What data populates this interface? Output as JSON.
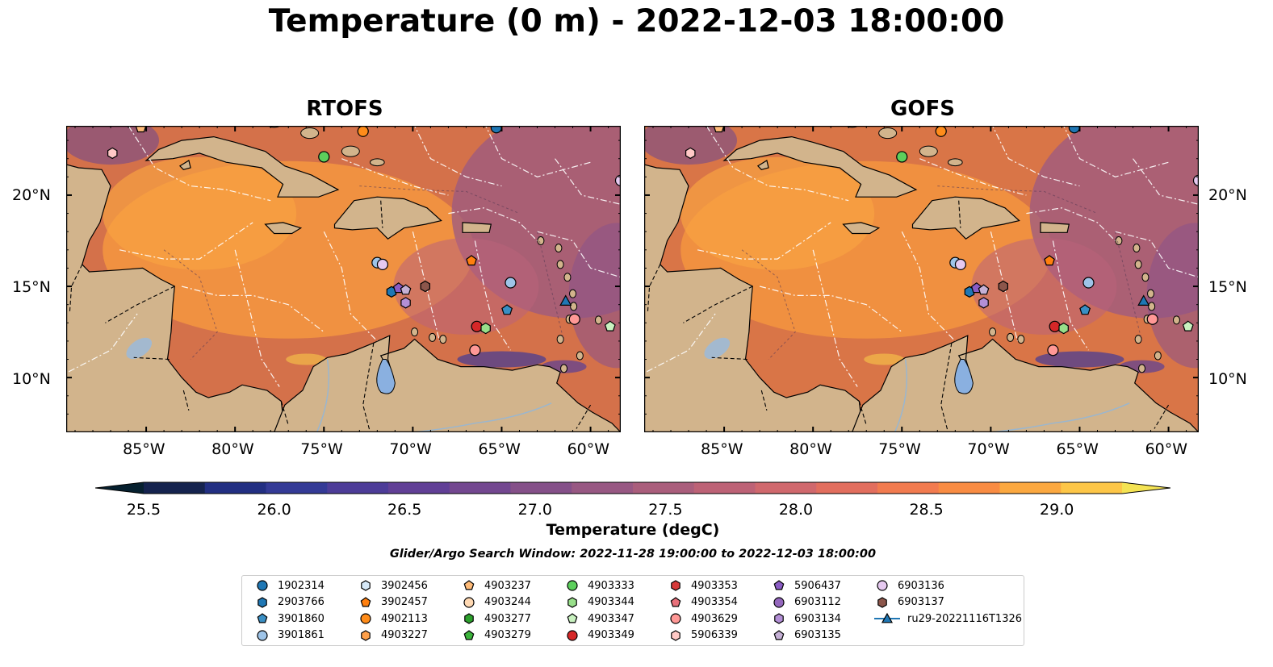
{
  "title": "Temperature (0 m) - 2022-12-03 18:00:00",
  "panels": [
    {
      "name": "RTOFS"
    },
    {
      "name": "GOFS"
    }
  ],
  "axes": {
    "lon_ticks": [
      "85°W",
      "80°W",
      "75°W",
      "70°W",
      "65°W",
      "60°W"
    ],
    "lat_ticks": [
      "20°N",
      "15°N",
      "10°N"
    ],
    "lon_range": [
      -89.5,
      -58.3
    ],
    "lat_range": [
      7.0,
      23.8
    ]
  },
  "colorbar": {
    "label": "Temperature (degC)",
    "ticks": [
      "25.5",
      "26.0",
      "26.5",
      "27.0",
      "27.5",
      "28.0",
      "28.5",
      "29.0"
    ],
    "range": [
      25.5,
      29.25
    ],
    "extend": "both",
    "colors": [
      "#06202f",
      "#15234e",
      "#222f82",
      "#343a96",
      "#4d3c98",
      "#613f96",
      "#734790",
      "#855089",
      "#985883",
      "#aa5e7c",
      "#bd6276",
      "#d0686d",
      "#e26e5e",
      "#f27b4f",
      "#f98c43",
      "#fba840",
      "#fdc647",
      "#f4e353"
    ]
  },
  "search_window": "Glider/Argo Search Window: 2022-11-28 19:00:00 to 2022-12-03 18:00:00",
  "legend": [
    {
      "label": "1902314",
      "marker": "circle",
      "color": "#1f77b4"
    },
    {
      "label": "2903766",
      "marker": "hexagon",
      "color": "#1f77b4"
    },
    {
      "label": "3901860",
      "marker": "pentagon",
      "color": "#3a8fc4"
    },
    {
      "label": "3901861",
      "marker": "circle",
      "color": "#9ec4e8"
    },
    {
      "label": "3902456",
      "marker": "hexagon",
      "color": "#d6e8f7"
    },
    {
      "label": "3902457",
      "marker": "pentagon",
      "color": "#ff7f0e"
    },
    {
      "label": "4902113",
      "marker": "circle",
      "color": "#ff8c1a"
    },
    {
      "label": "4903227",
      "marker": "hexagon",
      "color": "#ffa04a"
    },
    {
      "label": "4903237",
      "marker": "pentagon",
      "color": "#ffbb78"
    },
    {
      "label": "4903244",
      "marker": "circle",
      "color": "#ffd9b3"
    },
    {
      "label": "4903277",
      "marker": "hexagon",
      "color": "#2ca02c"
    },
    {
      "label": "4903279",
      "marker": "pentagon",
      "color": "#3cb43c"
    },
    {
      "label": "4903333",
      "marker": "circle",
      "color": "#5ccf5c"
    },
    {
      "label": "4903344",
      "marker": "hexagon",
      "color": "#98df8a"
    },
    {
      "label": "4903347",
      "marker": "pentagon",
      "color": "#c9f2c0"
    },
    {
      "label": "4903349",
      "marker": "circle",
      "color": "#d62728"
    },
    {
      "label": "4903353",
      "marker": "hexagon",
      "color": "#d63a3a"
    },
    {
      "label": "4903354",
      "marker": "pentagon",
      "color": "#e8707a"
    },
    {
      "label": "4903629",
      "marker": "circle",
      "color": "#ff9896"
    },
    {
      "label": "5906339",
      "marker": "hexagon",
      "color": "#ffc9c6"
    },
    {
      "label": "5906437",
      "marker": "pentagon",
      "color": "#8a5cc4"
    },
    {
      "label": "6903112",
      "marker": "circle",
      "color": "#9467bd"
    },
    {
      "label": "6903134",
      "marker": "hexagon",
      "color": "#b38fd6"
    },
    {
      "label": "6903135",
      "marker": "pentagon",
      "color": "#c5b0d5"
    },
    {
      "label": "6903136",
      "marker": "circle",
      "color": "#e6c9f0"
    },
    {
      "label": "6903137",
      "marker": "hexagon",
      "color": "#8c564b"
    },
    {
      "label": "ru29-20221116T1326",
      "marker": "triangle-line",
      "color": "#1f77b4"
    }
  ],
  "observations": [
    {
      "id": "4903237",
      "lon": -85.3,
      "lat": 23.7
    },
    {
      "id": "5906339",
      "lon": -86.9,
      "lat": 22.3
    },
    {
      "id": "4902113",
      "lon": -72.8,
      "lat": 23.5
    },
    {
      "id": "4903333",
      "lon": -75.0,
      "lat": 22.1
    },
    {
      "id": "1902314",
      "lon": -65.3,
      "lat": 23.7
    },
    {
      "id": "6903136",
      "lon": -58.3,
      "lat": 20.8
    },
    {
      "id": "3901861",
      "lon": -72.0,
      "lat": 16.3
    },
    {
      "id": "6903136",
      "lon": -71.7,
      "lat": 16.2
    },
    {
      "id": "3902457",
      "lon": -66.7,
      "lat": 16.4
    },
    {
      "id": "3901861",
      "lon": -64.5,
      "lat": 15.2
    },
    {
      "id": "2903766",
      "lon": -71.2,
      "lat": 14.7
    },
    {
      "id": "5906437",
      "lon": -70.8,
      "lat": 14.9
    },
    {
      "id": "6903135",
      "lon": -70.4,
      "lat": 14.8
    },
    {
      "id": "6903134",
      "lon": -70.4,
      "lat": 14.1
    },
    {
      "id": "6903137",
      "lon": -69.3,
      "lat": 15.0
    },
    {
      "id": "3901860",
      "lon": -64.7,
      "lat": 13.7
    },
    {
      "id": "4903349",
      "lon": -66.4,
      "lat": 12.8
    },
    {
      "id": "4903344",
      "lon": -65.9,
      "lat": 12.7
    },
    {
      "id": "4903629",
      "lon": -66.5,
      "lat": 11.5
    },
    {
      "id": "ru29-20221116T1326",
      "lon": -61.4,
      "lat": 14.2
    },
    {
      "id": "4903629",
      "lon": -60.9,
      "lat": 13.2
    },
    {
      "id": "4903347",
      "lon": -58.9,
      "lat": 12.8
    }
  ]
}
